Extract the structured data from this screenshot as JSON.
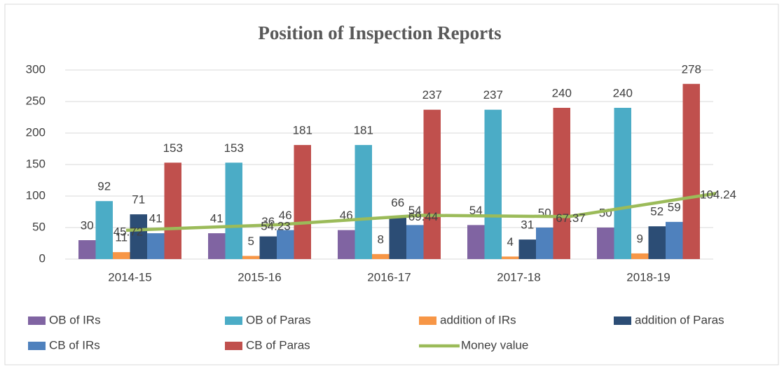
{
  "chart_data": {
    "type": "bar",
    "title": "Position of Inspection Reports",
    "categories": [
      "2014-15",
      "2015-16",
      "2016-17",
      "2017-18",
      "2018-19"
    ],
    "ylim": [
      0,
      300
    ],
    "yticks": [
      0,
      50,
      100,
      150,
      200,
      250,
      300
    ],
    "grid": true,
    "legend": "bottom",
    "series": [
      {
        "name": "OB of IRs",
        "color": "#8064a2",
        "values": [
          30,
          41,
          46,
          54,
          50
        ]
      },
      {
        "name": "OB of Paras",
        "color": "#4bacc6",
        "values": [
          92,
          153,
          181,
          237,
          240
        ]
      },
      {
        "name": "addition of IRs",
        "color": "#f79646",
        "values": [
          11,
          5,
          8,
          4,
          9
        ]
      },
      {
        "name": "addition of Paras",
        "color": "#2c4d75",
        "values": [
          71,
          36,
          66,
          31,
          52
        ]
      },
      {
        "name": "CB of IRs",
        "color": "#4f81bd",
        "values": [
          41,
          46,
          54,
          50,
          59
        ]
      },
      {
        "name": "CB of Paras",
        "color": "#c0504d",
        "values": [
          153,
          181,
          237,
          240,
          278
        ]
      },
      {
        "name": "Money value",
        "color": "#9bbb59",
        "type": "line",
        "values": [
          45.72,
          54.23,
          69.44,
          67.37,
          104.24
        ]
      }
    ]
  }
}
